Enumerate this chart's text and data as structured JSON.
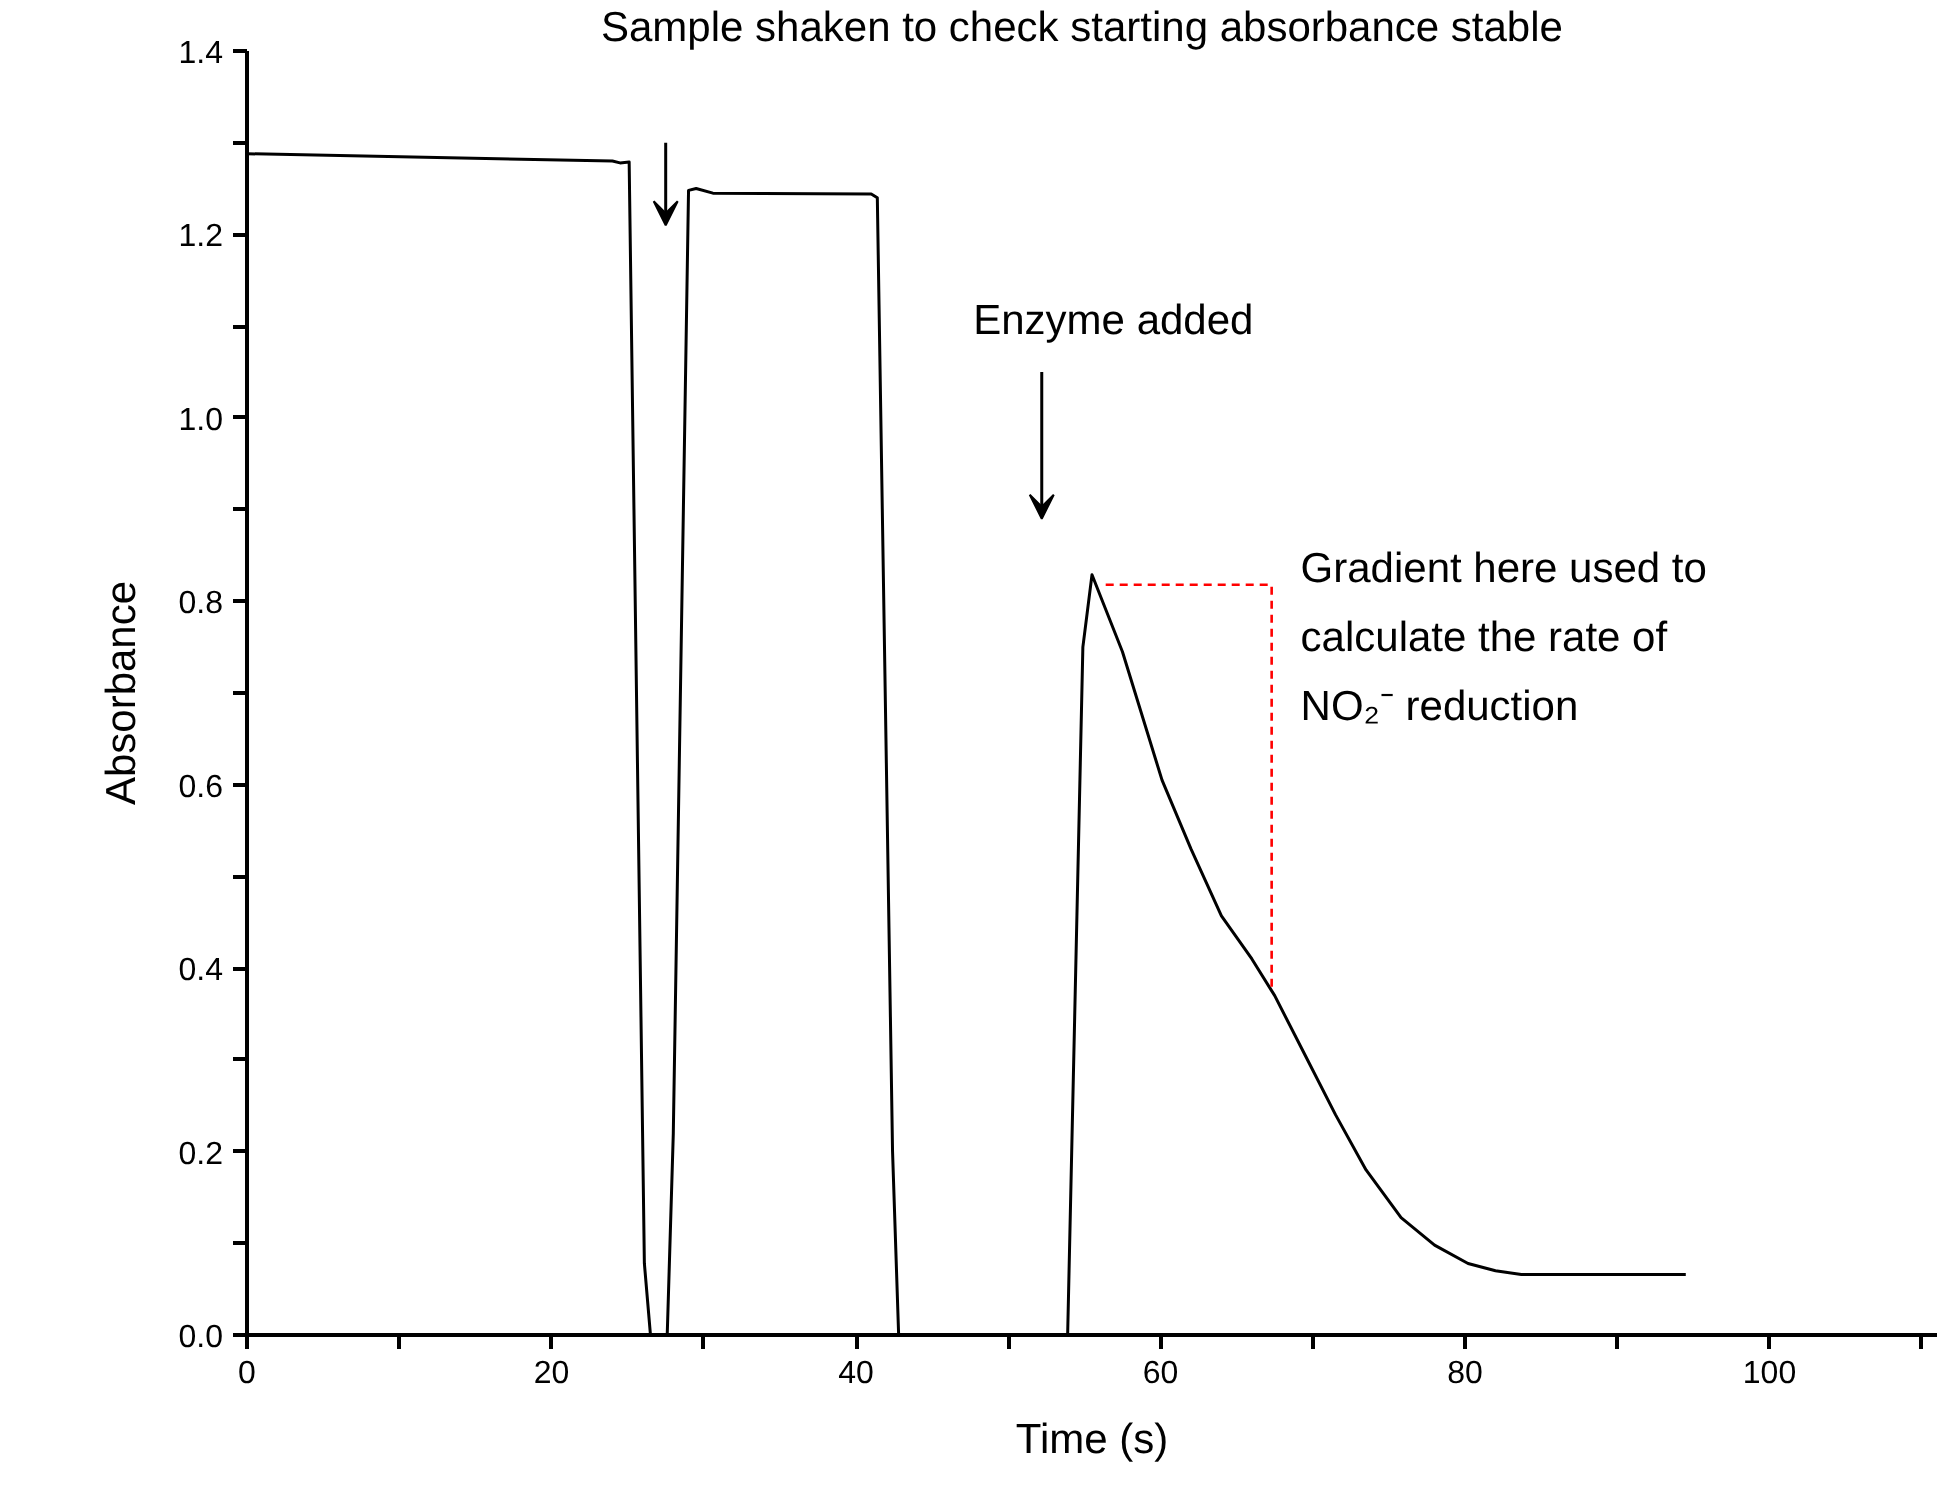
{
  "chart_data": {
    "type": "line",
    "xlabel": "Time (s)",
    "ylabel": "Absorbance",
    "xlim": [
      0,
      111
    ],
    "ylim": [
      0,
      1.4
    ],
    "xticks": [
      0,
      {
        "value": 10,
        "label": null
      },
      20,
      {
        "value": 30,
        "label": null
      },
      40,
      {
        "value": 50,
        "label": null
      },
      60,
      {
        "value": 70,
        "label": null
      },
      80,
      {
        "value": 90,
        "label": null
      },
      100,
      {
        "value": 110,
        "label": null
      }
    ],
    "yticks": [
      "0.0",
      {
        "value": 0.1,
        "label": null
      },
      {
        "value": 0.2,
        "label": "0.2"
      },
      {
        "value": 0.3,
        "label": null
      },
      {
        "value": 0.4,
        "label": "0.4"
      },
      {
        "value": 0.5,
        "label": null
      },
      {
        "value": 0.6,
        "label": "0.6"
      },
      {
        "value": 0.7,
        "label": null
      },
      {
        "value": 0.8,
        "label": "0.8"
      },
      {
        "value": 0.9,
        "label": null
      },
      {
        "value": 1.0,
        "label": "1.0"
      },
      {
        "value": 1.1,
        "label": null
      },
      {
        "value": 1.2,
        "label": "1.2"
      },
      {
        "value": 1.3,
        "label": null
      },
      {
        "value": 1.4,
        "label": "1.4"
      }
    ],
    "grid": false,
    "marker": "none",
    "series": [
      {
        "color": "#000000",
        "line_style": "solid",
        "x": [
          0,
          24,
          24.5,
          25.1,
          26.1,
          26.5,
          27.6,
          28.0,
          29.0,
          29.5,
          30.6,
          41.0,
          41.4,
          42.4,
          42.8,
          53.9,
          54.9,
          55.5,
          57.5,
          60.1,
          62,
          64.0,
          66,
          67.5,
          69.5,
          71.5,
          73.5,
          75.8,
          78,
          80.2,
          82,
          83.7,
          94.5
        ],
        "values": [
          1.288,
          1.28,
          1.278,
          1.279,
          0.078,
          0,
          0,
          0.22,
          1.248,
          1.25,
          1.245,
          1.244,
          1.24,
          0.2,
          0,
          0,
          0.75,
          0.829,
          0.745,
          0.605,
          0.53,
          0.457,
          0.41,
          0.37,
          0.305,
          0.24,
          0.18,
          0.128,
          0.098,
          0.078,
          0.07,
          0.066,
          0.066
        ]
      },
      {
        "color": "#ff0000",
        "line_style": "dashed",
        "x": [
          56.4,
          67.3,
          67.3
        ],
        "values": [
          0.818,
          0.818,
          0.374
        ]
      }
    ],
    "annotations": [
      "Sample shaken to check starting absorbance stable",
      "Enzyme added",
      "Gradient here used to\ncalculate the rate of\nNO₂⁻ reduction"
    ]
  }
}
